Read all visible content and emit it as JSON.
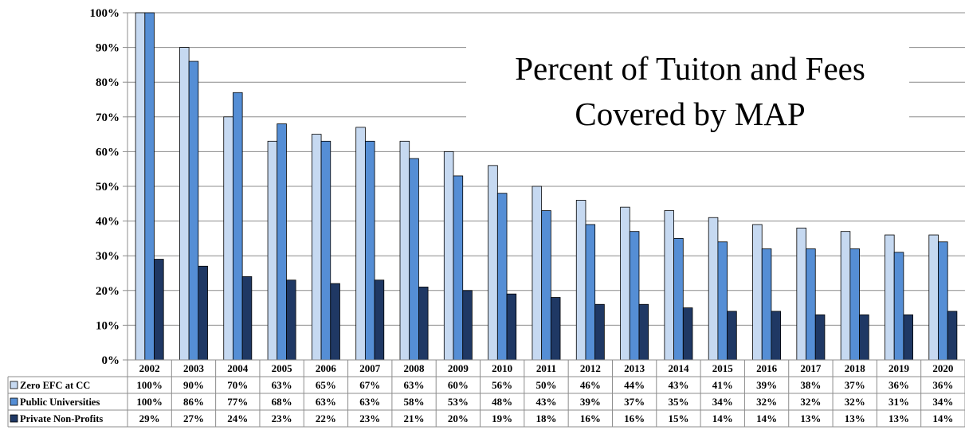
{
  "chart_data": {
    "type": "bar",
    "title_lines": [
      "Percent of Tuiton and Fees",
      "Covered by MAP"
    ],
    "categories": [
      "2002",
      "2003",
      "2004",
      "2005",
      "2006",
      "2007",
      "2008",
      "2009",
      "2010",
      "2011",
      "2012",
      "2013",
      "2014",
      "2015",
      "2016",
      "2017",
      "2018",
      "2019",
      "2020"
    ],
    "series": [
      {
        "name": "Zero EFC at CC",
        "color": "#c6d9f1",
        "values": [
          100,
          90,
          70,
          63,
          65,
          67,
          63,
          60,
          56,
          50,
          46,
          44,
          43,
          41,
          39,
          38,
          37,
          36,
          36
        ],
        "labels": [
          "100%",
          "90%",
          "70%",
          "63%",
          "65%",
          "67%",
          "63%",
          "60%",
          "56%",
          "50%",
          "46%",
          "44%",
          "43%",
          "41%",
          "39%",
          "38%",
          "37%",
          "36%",
          "36%"
        ]
      },
      {
        "name": "Public Universities",
        "color": "#558ed5",
        "values": [
          100,
          86,
          77,
          68,
          63,
          63,
          58,
          53,
          48,
          43,
          39,
          37,
          35,
          34,
          32,
          32,
          32,
          31,
          34
        ],
        "labels": [
          "100%",
          "86%",
          "77%",
          "68%",
          "63%",
          "63%",
          "58%",
          "53%",
          "48%",
          "43%",
          "39%",
          "37%",
          "35%",
          "34%",
          "32%",
          "32%",
          "32%",
          "31%",
          "34%"
        ]
      },
      {
        "name": "Private Non-Profits",
        "color": "#1f3864",
        "values": [
          29,
          27,
          24,
          23,
          22,
          23,
          21,
          20,
          19,
          18,
          16,
          16,
          15,
          14,
          14,
          13,
          13,
          13,
          14
        ],
        "labels": [
          "29%",
          "27%",
          "24%",
          "23%",
          "22%",
          "23%",
          "21%",
          "20%",
          "19%",
          "18%",
          "16%",
          "16%",
          "15%",
          "14%",
          "14%",
          "13%",
          "13%",
          "13%",
          "14%"
        ]
      }
    ],
    "y_ticks": [
      "0%",
      "10%",
      "20%",
      "30%",
      "40%",
      "50%",
      "60%",
      "70%",
      "80%",
      "90%",
      "100%"
    ],
    "ylim": [
      0,
      100
    ],
    "grid": true,
    "legend": "data table below chart"
  }
}
